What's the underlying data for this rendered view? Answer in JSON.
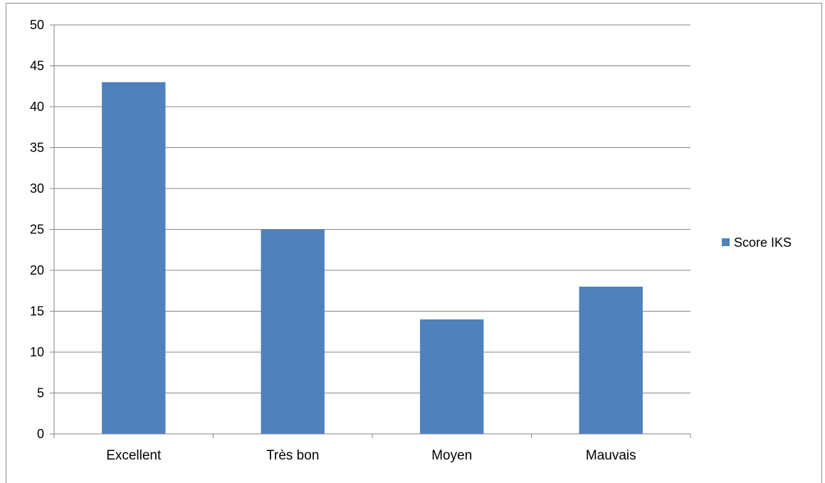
{
  "chart_data": {
    "type": "bar",
    "categories": [
      "Excellent",
      "Très bon",
      "Moyen",
      "Mauvais"
    ],
    "series": [
      {
        "name": "Score IKS",
        "values": [
          43,
          25,
          14,
          18
        ],
        "color": "#4f81bd"
      }
    ],
    "title": "",
    "xlabel": "",
    "ylabel": "",
    "ylim": [
      0,
      50
    ],
    "yticks": [
      0,
      5,
      10,
      15,
      20,
      25,
      30,
      35,
      40,
      45,
      50
    ],
    "grid": true,
    "legend_position": "right"
  }
}
